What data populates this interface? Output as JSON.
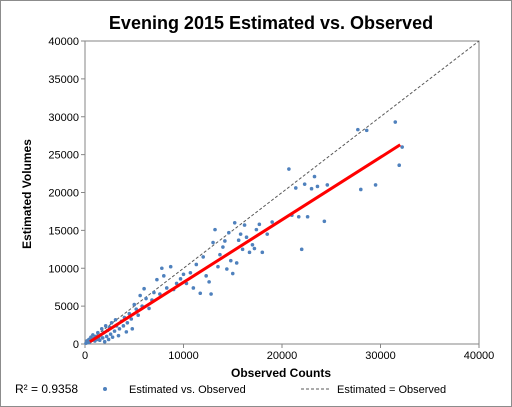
{
  "chart_data": {
    "type": "scatter",
    "title": "Evening 2015 Estimated vs. Observed",
    "xlabel": "Observed Counts",
    "ylabel": "Estimated Volumes",
    "xlim": [
      0,
      40000
    ],
    "ylim": [
      0,
      40000
    ],
    "x_ticks": [
      "0",
      "10000",
      "20000",
      "30000",
      "40000"
    ],
    "y_ticks": [
      "0",
      "5000",
      "10000",
      "15000",
      "20000",
      "25000",
      "30000",
      "35000",
      "40000"
    ],
    "grid": false,
    "legend_position": "bottom",
    "r_squared_label": "R² = 0.9358",
    "colors": {
      "points": "#4f81bd",
      "trend": "#ff0000",
      "reference": "#595959"
    },
    "series": [
      {
        "name": "Estimated vs. Observed",
        "points": [
          [
            100,
            100
          ],
          [
            200,
            400
          ],
          [
            300,
            200
          ],
          [
            400,
            600
          ],
          [
            500,
            300
          ],
          [
            600,
            900
          ],
          [
            700,
            500
          ],
          [
            800,
            1200
          ],
          [
            900,
            700
          ],
          [
            1000,
            400
          ],
          [
            1100,
            1000
          ],
          [
            1200,
            600
          ],
          [
            1300,
            1500
          ],
          [
            1400,
            900
          ],
          [
            1500,
            500
          ],
          [
            1600,
            1200
          ],
          [
            1700,
            2000
          ],
          [
            1800,
            800
          ],
          [
            1900,
            1500
          ],
          [
            2000,
            300
          ],
          [
            2100,
            2400
          ],
          [
            2200,
            1000
          ],
          [
            2300,
            1800
          ],
          [
            2400,
            600
          ],
          [
            2500,
            2200
          ],
          [
            2600,
            1300
          ],
          [
            2700,
            2800
          ],
          [
            2800,
            900
          ],
          [
            3000,
            1700
          ],
          [
            3100,
            3200
          ],
          [
            3200,
            2400
          ],
          [
            3400,
            1100
          ],
          [
            3500,
            2000
          ],
          [
            3700,
            3000
          ],
          [
            3900,
            2400
          ],
          [
            4000,
            3500
          ],
          [
            4200,
            1600
          ],
          [
            4300,
            2800
          ],
          [
            4500,
            4000
          ],
          [
            4700,
            3300
          ],
          [
            4800,
            2000
          ],
          [
            5000,
            5200
          ],
          [
            5200,
            4600
          ],
          [
            5400,
            3800
          ],
          [
            5600,
            6400
          ],
          [
            5800,
            5000
          ],
          [
            6000,
            7300
          ],
          [
            6200,
            6000
          ],
          [
            6500,
            4700
          ],
          [
            6800,
            5800
          ],
          [
            7000,
            6800
          ],
          [
            7300,
            8500
          ],
          [
            7600,
            6600
          ],
          [
            7800,
            10000
          ],
          [
            8000,
            9000
          ],
          [
            8300,
            7400
          ],
          [
            8700,
            10200
          ],
          [
            9000,
            7200
          ],
          [
            9300,
            8000
          ],
          [
            9700,
            8600
          ],
          [
            10000,
            9200
          ],
          [
            10300,
            8000
          ],
          [
            10700,
            9400
          ],
          [
            11000,
            7400
          ],
          [
            11300,
            10500
          ],
          [
            11700,
            6700
          ],
          [
            12000,
            11500
          ],
          [
            12300,
            9000
          ],
          [
            12600,
            8200
          ],
          [
            12800,
            6600
          ],
          [
            13000,
            13400
          ],
          [
            13200,
            15100
          ],
          [
            13500,
            10200
          ],
          [
            13700,
            11800
          ],
          [
            14000,
            12800
          ],
          [
            14200,
            13600
          ],
          [
            14400,
            9900
          ],
          [
            14600,
            14700
          ],
          [
            14800,
            11000
          ],
          [
            15000,
            9300
          ],
          [
            15200,
            16000
          ],
          [
            15400,
            10700
          ],
          [
            15600,
            13700
          ],
          [
            15800,
            14500
          ],
          [
            16000,
            12500
          ],
          [
            16200,
            15700
          ],
          [
            16400,
            14100
          ],
          [
            16700,
            12100
          ],
          [
            17000,
            13100
          ],
          [
            17200,
            12600
          ],
          [
            17400,
            15100
          ],
          [
            17700,
            15800
          ],
          [
            18000,
            12100
          ],
          [
            18500,
            14500
          ],
          [
            19000,
            16100
          ],
          [
            20700,
            23100
          ],
          [
            21000,
            17000
          ],
          [
            21400,
            20600
          ],
          [
            21700,
            16800
          ],
          [
            22000,
            12500
          ],
          [
            22300,
            21100
          ],
          [
            22600,
            16800
          ],
          [
            23000,
            20500
          ],
          [
            23300,
            22100
          ],
          [
            23600,
            20800
          ],
          [
            24300,
            16200
          ],
          [
            24600,
            21000
          ],
          [
            27700,
            28300
          ],
          [
            28000,
            20400
          ],
          [
            28600,
            28200
          ],
          [
            29500,
            21000
          ],
          [
            31500,
            29300
          ],
          [
            31900,
            23600
          ],
          [
            32200,
            26000
          ]
        ]
      },
      {
        "name": "Estimated = Observed",
        "line": [
          [
            0,
            0
          ],
          [
            40000,
            40000
          ]
        ]
      }
    ],
    "trendline": [
      [
        500,
        300
      ],
      [
        32000,
        26300
      ]
    ]
  }
}
